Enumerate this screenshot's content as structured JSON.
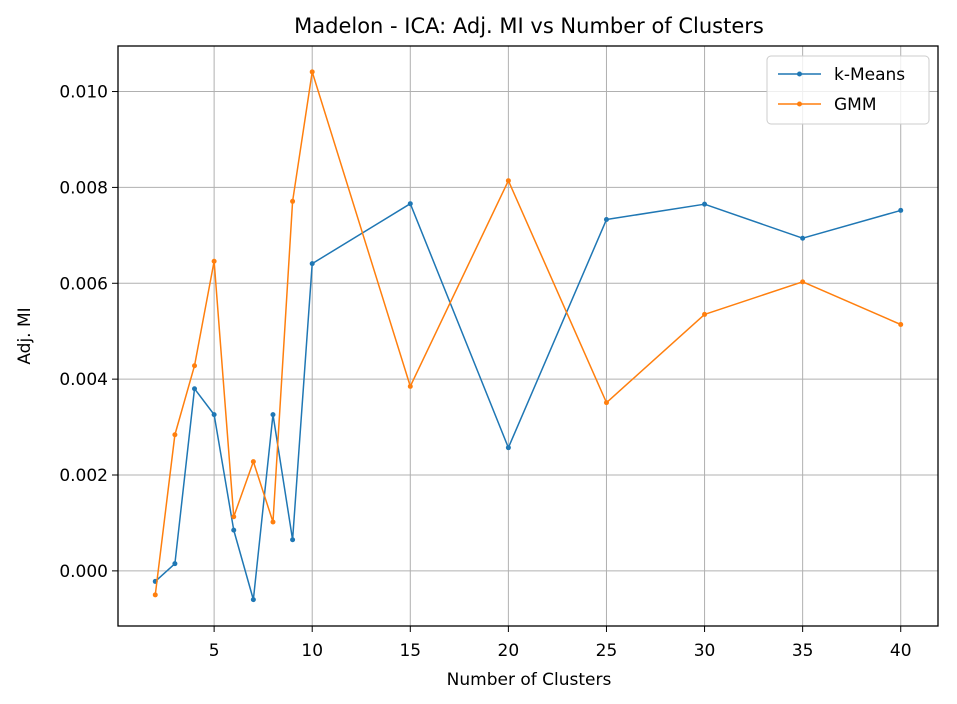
{
  "chart_data": {
    "type": "line",
    "title": "Madelon - ICA: Adj. MI vs Number of Clusters",
    "xlabel": "Number of Clusters",
    "ylabel": "Adj. MI",
    "xlim": [
      0.1,
      41.9
    ],
    "ylim": [
      -0.00115,
      0.01095
    ],
    "xticks": [
      5,
      10,
      15,
      20,
      25,
      30,
      35,
      40
    ],
    "yticks": [
      0.0,
      0.002,
      0.004,
      0.006,
      0.008,
      0.01
    ],
    "ytick_labels": [
      "0.000",
      "0.002",
      "0.004",
      "0.006",
      "0.008",
      "0.010"
    ],
    "grid": true,
    "legend_position": "top-right",
    "x": [
      2,
      3,
      4,
      5,
      6,
      7,
      8,
      9,
      10,
      15,
      20,
      25,
      30,
      35,
      40
    ],
    "series": [
      {
        "name": "k-Means",
        "color": "#1f77b4",
        "values": [
          -0.00022,
          0.00015,
          0.0038,
          0.00326,
          0.00085,
          -0.0006,
          0.00326,
          0.00065,
          0.00641,
          0.00766,
          0.00257,
          0.00733,
          0.00765,
          0.00694,
          0.00752
        ]
      },
      {
        "name": "GMM",
        "color": "#ff7f0e",
        "values": [
          -0.0005,
          0.00284,
          0.00428,
          0.00646,
          0.00113,
          0.00228,
          0.00102,
          0.00771,
          0.01041,
          0.00385,
          0.00814,
          0.00351,
          0.00535,
          0.00603,
          0.00514
        ]
      }
    ]
  }
}
